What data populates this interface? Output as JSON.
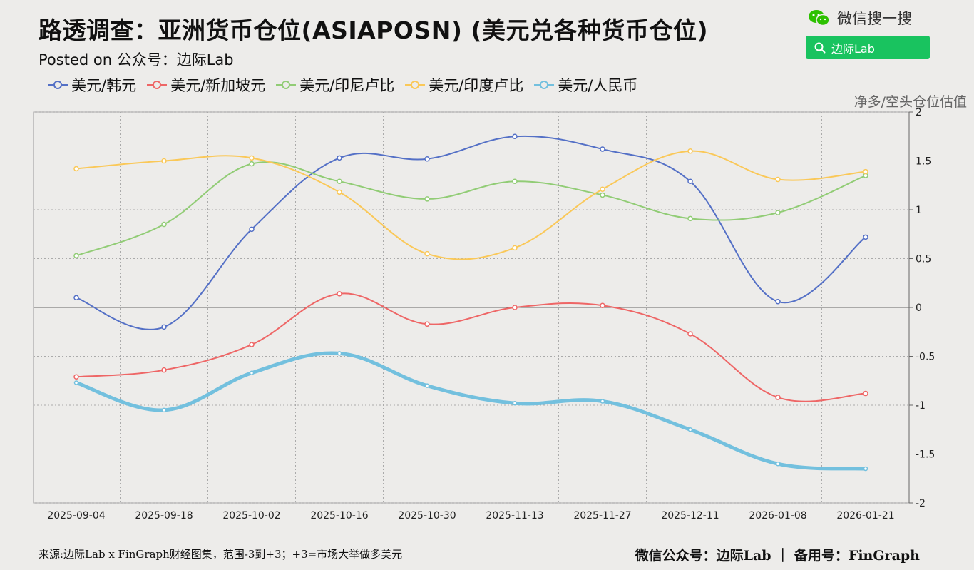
{
  "header": {
    "title": "路透调查：亚洲货币仓位(ASIAPOSN) (美元兑各种货币仓位)",
    "subtitle": "Posted on 公众号：边际Lab"
  },
  "wechat": {
    "label": "微信搜一搜",
    "search_text": "边际Lab"
  },
  "footer": {
    "source": "来源:边际Lab x FinGraph财经图集，范围-3到+3；+3=市场大举做多美元",
    "right": "微信公众号：边际Lab ｜ 备用号：FinGraph"
  },
  "chart_data": {
    "type": "line",
    "title": "路透调查：亚洲货币仓位(ASIAPOSN) (美元兑各种货币仓位)",
    "ylabel": "净多/空头仓位估值",
    "ylim": [
      -2,
      2
    ],
    "yticks": [
      2,
      1.5,
      1,
      0.5,
      0,
      -0.5,
      -1,
      -1.5,
      -2
    ],
    "y_axis_position": "right",
    "legend_position": "top-left",
    "grid": true,
    "x": [
      "2025-09-04",
      "2025-09-18",
      "2025-10-02",
      "2025-10-16",
      "2025-10-30",
      "2025-11-13",
      "2025-11-27",
      "2025-12-11",
      "2026-01-08",
      "2026-01-21"
    ],
    "series": [
      {
        "name": "美元/韩元",
        "color": "#5470c6",
        "values": [
          0.1,
          -0.2,
          0.8,
          1.53,
          1.52,
          1.75,
          1.62,
          1.29,
          0.06,
          0.72
        ]
      },
      {
        "name": "美元/新加坡元",
        "color": "#ee6666",
        "values": [
          -0.71,
          -0.64,
          -0.38,
          0.14,
          -0.17,
          0.0,
          0.02,
          -0.27,
          -0.92,
          -0.88
        ]
      },
      {
        "name": "美元/印尼卢比",
        "color": "#91cc75",
        "values": [
          0.53,
          0.85,
          1.47,
          1.29,
          1.11,
          1.29,
          1.15,
          0.91,
          0.97,
          1.35
        ]
      },
      {
        "name": "美元/印度卢比",
        "color": "#fac858",
        "values": [
          1.42,
          1.5,
          1.53,
          1.18,
          0.55,
          0.61,
          1.21,
          1.6,
          1.31,
          1.39
        ]
      },
      {
        "name": "美元/人民币",
        "color": "#73c0de",
        "values": [
          -0.77,
          -1.05,
          -0.67,
          -0.47,
          -0.8,
          -0.98,
          -0.96,
          -1.25,
          -1.6,
          -1.65
        ]
      }
    ]
  }
}
